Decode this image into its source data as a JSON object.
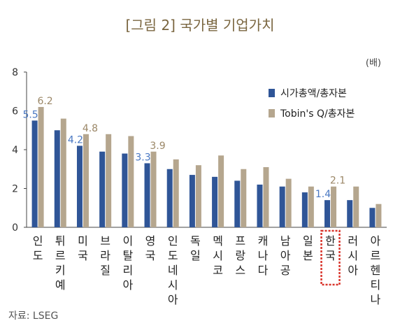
{
  "chart_data": {
    "type": "bar",
    "title": "[그림 2] 국가별 기업가치",
    "unit_label": "(배)",
    "source": "자료: LSEG",
    "categories": [
      "인도",
      "튀르키예",
      "미국",
      "브라질",
      "이탈리아",
      "영국",
      "인도네시아",
      "독일",
      "멕시코",
      "프랑스",
      "캐나다",
      "남아공",
      "일본",
      "한국",
      "러시아",
      "아르헨티나"
    ],
    "series": [
      {
        "name": "시가총액/총자본",
        "color": "#2f5597",
        "values": [
          5.5,
          5.0,
          4.2,
          3.9,
          3.8,
          3.3,
          3.0,
          2.7,
          2.6,
          2.4,
          2.2,
          2.1,
          1.8,
          1.4,
          1.4,
          1.0
        ]
      },
      {
        "name": "Tobin's Q/총자본",
        "color": "#b5a68e",
        "values": [
          6.2,
          5.6,
          4.8,
          4.8,
          4.7,
          3.9,
          3.5,
          3.2,
          3.7,
          3.0,
          3.1,
          2.5,
          2.1,
          2.1,
          2.1,
          1.2
        ]
      }
    ],
    "data_labels": [
      {
        "category": "인도",
        "series": 0,
        "text": "5.5"
      },
      {
        "category": "인도",
        "series": 1,
        "text": "6.2"
      },
      {
        "category": "미국",
        "series": 0,
        "text": "4.2"
      },
      {
        "category": "미국",
        "series": 1,
        "text": "4.8"
      },
      {
        "category": "영국",
        "series": 0,
        "text": "3.3"
      },
      {
        "category": "영국",
        "series": 1,
        "text": "3.9"
      },
      {
        "category": "한국",
        "series": 0,
        "text": "1.4"
      },
      {
        "category": "한국",
        "series": 1,
        "text": "2.1"
      }
    ],
    "ylim": [
      0,
      8
    ],
    "yticks": [
      "0",
      "2",
      "4",
      "6",
      "8"
    ],
    "highlight_category": "한국",
    "highlight_color": "#d9342b",
    "legend_position": "top-right",
    "grid": false
  }
}
